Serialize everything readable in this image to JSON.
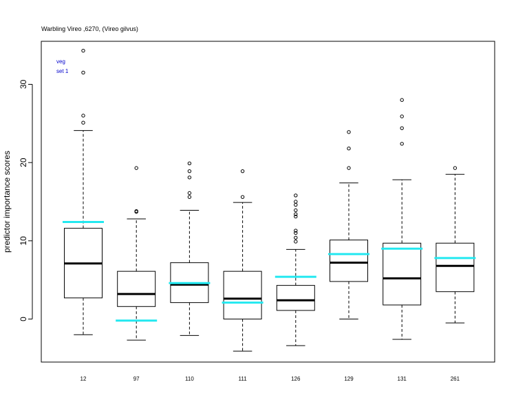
{
  "chart_data": {
    "type": "boxplot",
    "title": "Warbling Vireo ,6270, (Vireo gilvus)",
    "annotation_lines": [
      "veg",
      "set 1"
    ],
    "xlabel": "",
    "ylabel": "predictor importance scores",
    "ylim": [
      -5.5,
      35.5
    ],
    "yticks": [
      0,
      10,
      20,
      30
    ],
    "grid": false,
    "categories": [
      "12",
      "97",
      "110",
      "111",
      "126",
      "129",
      "131",
      "261"
    ],
    "boxes": [
      {
        "whisker_low": -2.0,
        "q1": 2.7,
        "median": 7.1,
        "q3": 11.6,
        "whisker_high": 24.1,
        "outliers": [
          25.1,
          26.0,
          31.5,
          34.3
        ],
        "reference": 12.4
      },
      {
        "whisker_low": -2.7,
        "q1": 1.6,
        "median": 3.2,
        "q3": 6.1,
        "whisker_high": 12.8,
        "outliers": [
          13.7,
          13.8,
          19.3
        ],
        "reference": -0.2
      },
      {
        "whisker_low": -2.1,
        "q1": 2.1,
        "median": 4.4,
        "q3": 7.2,
        "whisker_high": 13.9,
        "outliers": [
          15.6,
          16.1,
          18.1,
          18.9,
          19.9
        ],
        "reference": 4.6
      },
      {
        "whisker_low": -4.1,
        "q1": 0.0,
        "median": 2.6,
        "q3": 6.1,
        "whisker_high": 14.9,
        "outliers": [
          15.6,
          18.9
        ],
        "reference": 2.1
      },
      {
        "whisker_low": -3.4,
        "q1": 1.1,
        "median": 2.4,
        "q3": 4.3,
        "whisker_high": 8.9,
        "outliers": [
          9.9,
          10.4,
          11.0,
          11.3,
          13.1,
          13.4,
          13.9,
          14.6,
          15.0,
          15.8
        ],
        "reference": 5.4
      },
      {
        "whisker_low": 0.0,
        "q1": 4.8,
        "median": 7.2,
        "q3": 10.1,
        "whisker_high": 17.4,
        "outliers": [
          19.3,
          21.8,
          23.9
        ],
        "reference": 8.3
      },
      {
        "whisker_low": -2.6,
        "q1": 1.8,
        "median": 5.2,
        "q3": 9.7,
        "whisker_high": 17.8,
        "outliers": [
          22.4,
          24.4,
          25.9,
          28.0
        ],
        "reference": 9.0
      },
      {
        "whisker_low": -0.5,
        "q1": 3.5,
        "median": 6.8,
        "q3": 9.7,
        "whisker_high": 18.5,
        "outliers": [
          19.3
        ],
        "reference": 7.8
      }
    ],
    "colors": {
      "reference_line": "#22e8f0",
      "median": "#000000",
      "box_border": "#000000",
      "annotation": "#0000cc"
    }
  }
}
